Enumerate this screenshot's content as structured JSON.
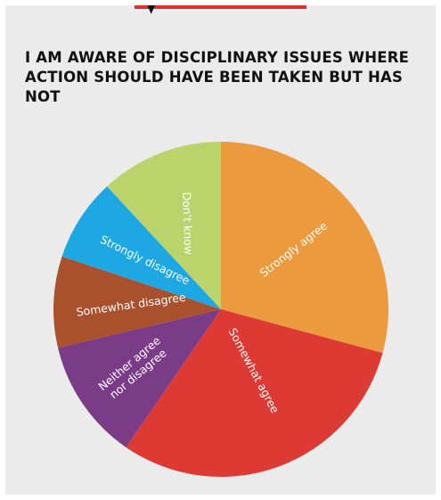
{
  "colors": {
    "top_bar": "#e0302f",
    "marker": "#111111",
    "background": "#ebebeb"
  },
  "chart_data": {
    "type": "pie",
    "title": "I AM AWARE OF DISCIPLINARY ISSUES WHERE ACTION SHOULD HAVE BEEN TAKEN BUT HAS NOT",
    "start_angle_deg": 0,
    "direction": "clockwise",
    "slices": [
      {
        "label": "Strongly agree",
        "value": 29.2,
        "color": "#eb9a3d"
      },
      {
        "label": "Somewhat agree",
        "value": 30.4,
        "color": "#de3a34"
      },
      {
        "label": "Neither agree nor disagree",
        "label_lines": [
          "Neither agree",
          "nor disagree"
        ],
        "value": 11.7,
        "color": "#7b3c87"
      },
      {
        "label": "Somewhat disagree",
        "value": 8.8,
        "color": "#a9502d"
      },
      {
        "label": "Strongly disagree",
        "value": 8.0,
        "color": "#1ea8e3"
      },
      {
        "label": "Don't know",
        "value": 11.9,
        "color": "#bbd36b"
      }
    ]
  }
}
